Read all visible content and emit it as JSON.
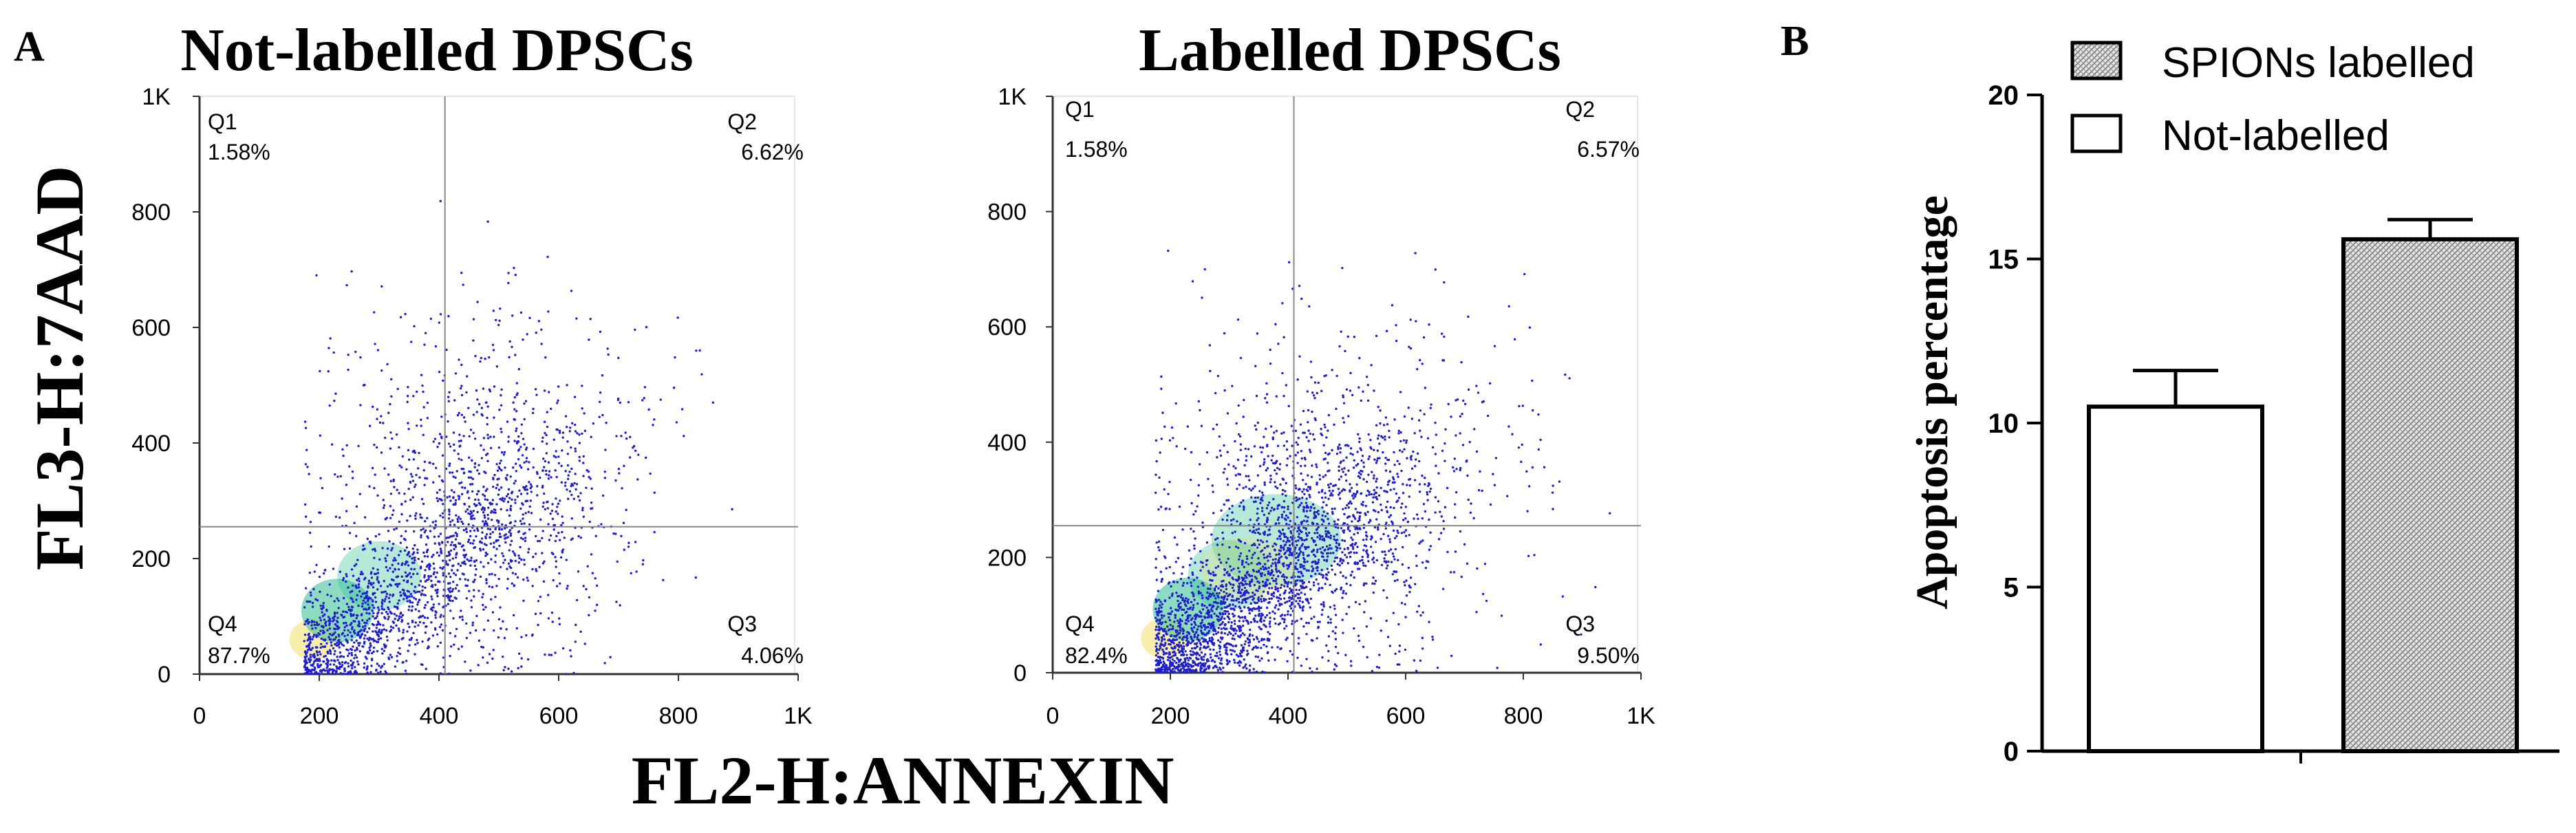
{
  "figure": {
    "panel_a_letter": "A",
    "panel_b_letter": "B",
    "shared_y_label": "FL3-H:7AAD",
    "shared_x_label": "FL2-H:ANNEXIN"
  },
  "chart_data": [
    {
      "type": "scatter",
      "title": "Not-labelled DPSCs",
      "xlabel": "FL2-H:ANNEXIN",
      "ylabel": "FL3-H:7AAD",
      "xlim": [
        0,
        1000
      ],
      "ylim": [
        0,
        1000
      ],
      "x_ticks": [
        "0",
        "200",
        "400",
        "600",
        "800",
        "1K"
      ],
      "y_ticks": [
        "0",
        "200",
        "400",
        "600",
        "800",
        "1K"
      ],
      "gate": {
        "x": 410,
        "y": 255
      },
      "quadrants": [
        {
          "name": "Q1",
          "value": "1.58%"
        },
        {
          "name": "Q2",
          "value": "6.62%"
        },
        {
          "name": "Q3",
          "value": "4.06%"
        },
        {
          "name": "Q4",
          "value": "87.7%"
        }
      ],
      "colors": {
        "points": "#1f1fcc",
        "dense": "#2fbf8f",
        "hot": "#f2e06a",
        "gate": "#888888"
      }
    },
    {
      "type": "scatter",
      "title": "Labelled DPSCs",
      "xlabel": "FL2-H:ANNEXIN",
      "ylabel": "FL3-H:7AAD",
      "xlim": [
        0,
        1000
      ],
      "ylim": [
        0,
        1000
      ],
      "x_ticks": [
        "0",
        "200",
        "400",
        "600",
        "800",
        "1K"
      ],
      "y_ticks": [
        "0",
        "200",
        "400",
        "600",
        "800",
        "1K"
      ],
      "gate": {
        "x": 410,
        "y": 255
      },
      "quadrants": [
        {
          "name": "Q1",
          "value": "1.58%"
        },
        {
          "name": "Q2",
          "value": "6.57%"
        },
        {
          "name": "Q3",
          "value": "9.50%"
        },
        {
          "name": "Q4",
          "value": "82.4%"
        }
      ],
      "colors": {
        "points": "#1f1fcc",
        "dense": "#2fbf8f",
        "hot": "#f2e06a",
        "gate": "#888888"
      }
    },
    {
      "type": "bar",
      "categories": [
        "Not-labelled",
        "SPIONs labelled"
      ],
      "values": [
        10.5,
        15.6
      ],
      "errors": [
        1.1,
        0.6
      ],
      "ylabel": "Apoptosis percentage",
      "ylim": [
        0,
        20
      ],
      "y_ticks": [
        "0",
        "5",
        "10",
        "15",
        "20"
      ],
      "legend": [
        {
          "label": "SPIONs labelled",
          "pattern": "hatched"
        },
        {
          "label": "Not-labelled",
          "pattern": "white"
        }
      ],
      "legend_position": "top-right",
      "colors": {
        "hatched": "#cfcfcf",
        "outline": "#000000"
      }
    }
  ]
}
